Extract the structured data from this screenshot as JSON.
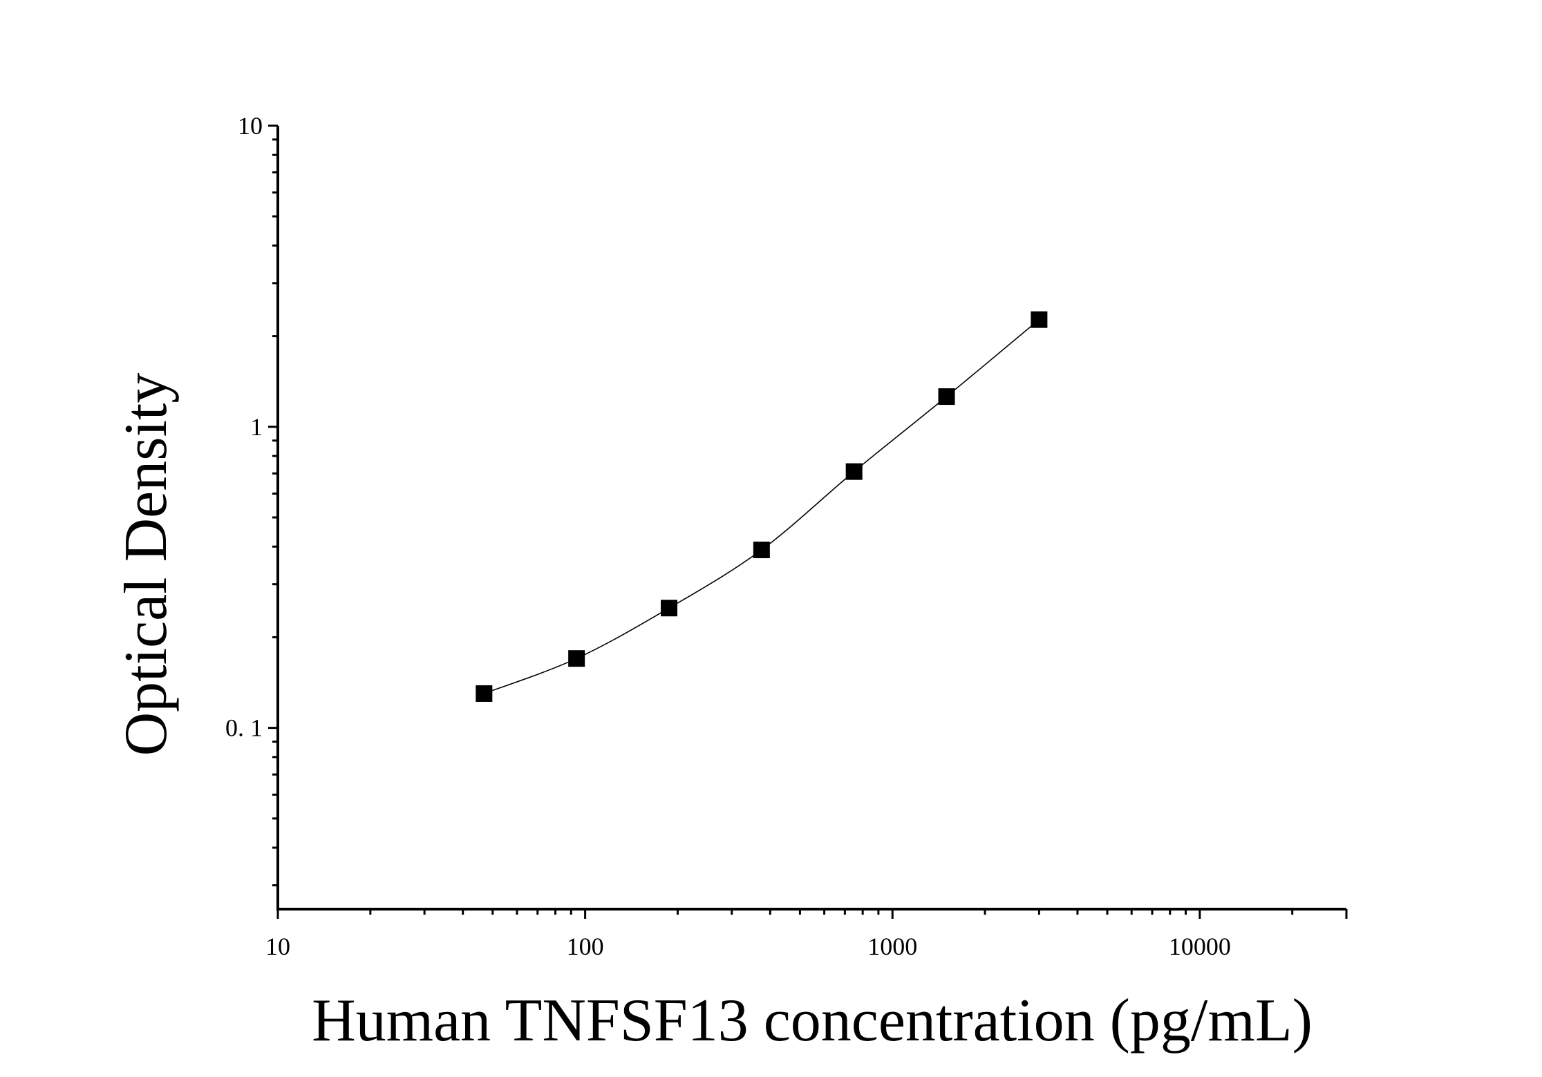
{
  "chart_data": {
    "type": "scatter",
    "xlabel": "Human TNFSF13 concentration (pg/mL)",
    "ylabel": "Optical Density",
    "xscale": "log",
    "yscale": "log",
    "xlim": [
      10,
      30000
    ],
    "ylim": [
      0.025,
      10
    ],
    "x_ticks": [
      {
        "value": 10,
        "label": "10"
      },
      {
        "value": 100,
        "label": "100"
      },
      {
        "value": 1000,
        "label": "1000"
      },
      {
        "value": 10000,
        "label": "10000"
      }
    ],
    "y_ticks": [
      {
        "value": 0.1,
        "label": "0. 1"
      },
      {
        "value": 1,
        "label": "1"
      },
      {
        "value": 10,
        "label": "10"
      }
    ],
    "grid": false,
    "series": [
      {
        "marker": "square",
        "color": "#000000",
        "fit_curve": true,
        "x": [
          46.875,
          93.75,
          187.5,
          375,
          750,
          1500,
          3000
        ],
        "y": [
          0.13,
          0.17,
          0.25,
          0.39,
          0.71,
          1.26,
          2.27
        ]
      }
    ]
  }
}
